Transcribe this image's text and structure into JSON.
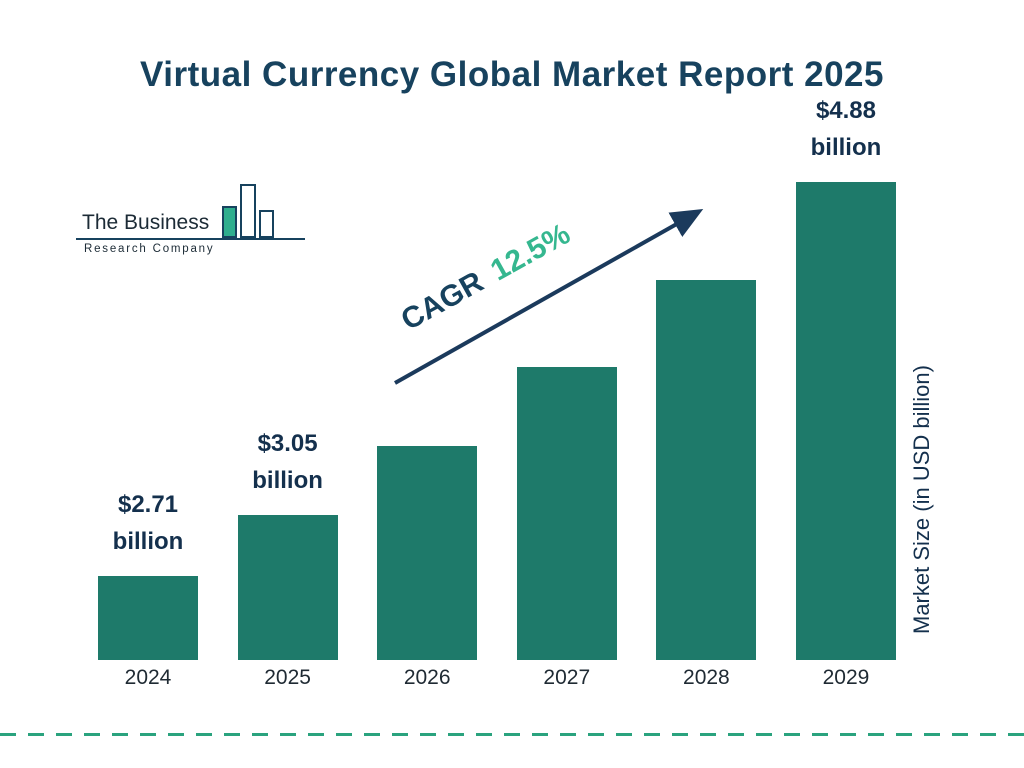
{
  "page": {
    "title": "Virtual Currency Global Market Report 2025"
  },
  "logo": {
    "name_line1": "The Business",
    "name_line2": "Research Company"
  },
  "annotation": {
    "cagr_label": "CAGR",
    "cagr_value": "12.5%"
  },
  "axis": {
    "y_label": "Market Size (in USD billion)"
  },
  "colors": {
    "bar": "#1e7a6a",
    "navy": "#17425e",
    "accent_green": "#35b78f",
    "dash_line": "#2aa37e",
    "value_label_text": "#14304d"
  },
  "chart_data": {
    "type": "bar",
    "title": "Virtual Currency Global Market Report 2025",
    "categories": [
      "2024",
      "2025",
      "2026",
      "2027",
      "2028",
      "2029"
    ],
    "values": [
      2.71,
      3.05,
      3.43,
      3.86,
      4.34,
      4.88
    ],
    "value_labels": [
      {
        "category": "2024",
        "amount": "$2.71",
        "unit": "billion"
      },
      {
        "category": "2025",
        "amount": "$3.05",
        "unit": "billion"
      },
      {
        "category": "2029",
        "amount": "$4.88",
        "unit": "billion"
      }
    ],
    "annotation": "CAGR 12.5%",
    "xlabel": "",
    "ylabel": "Market Size (in USD billion)",
    "ylim": [
      2.25,
      4.88
    ],
    "grid": false,
    "legend": false,
    "bar_color": "#1e7a6a"
  }
}
